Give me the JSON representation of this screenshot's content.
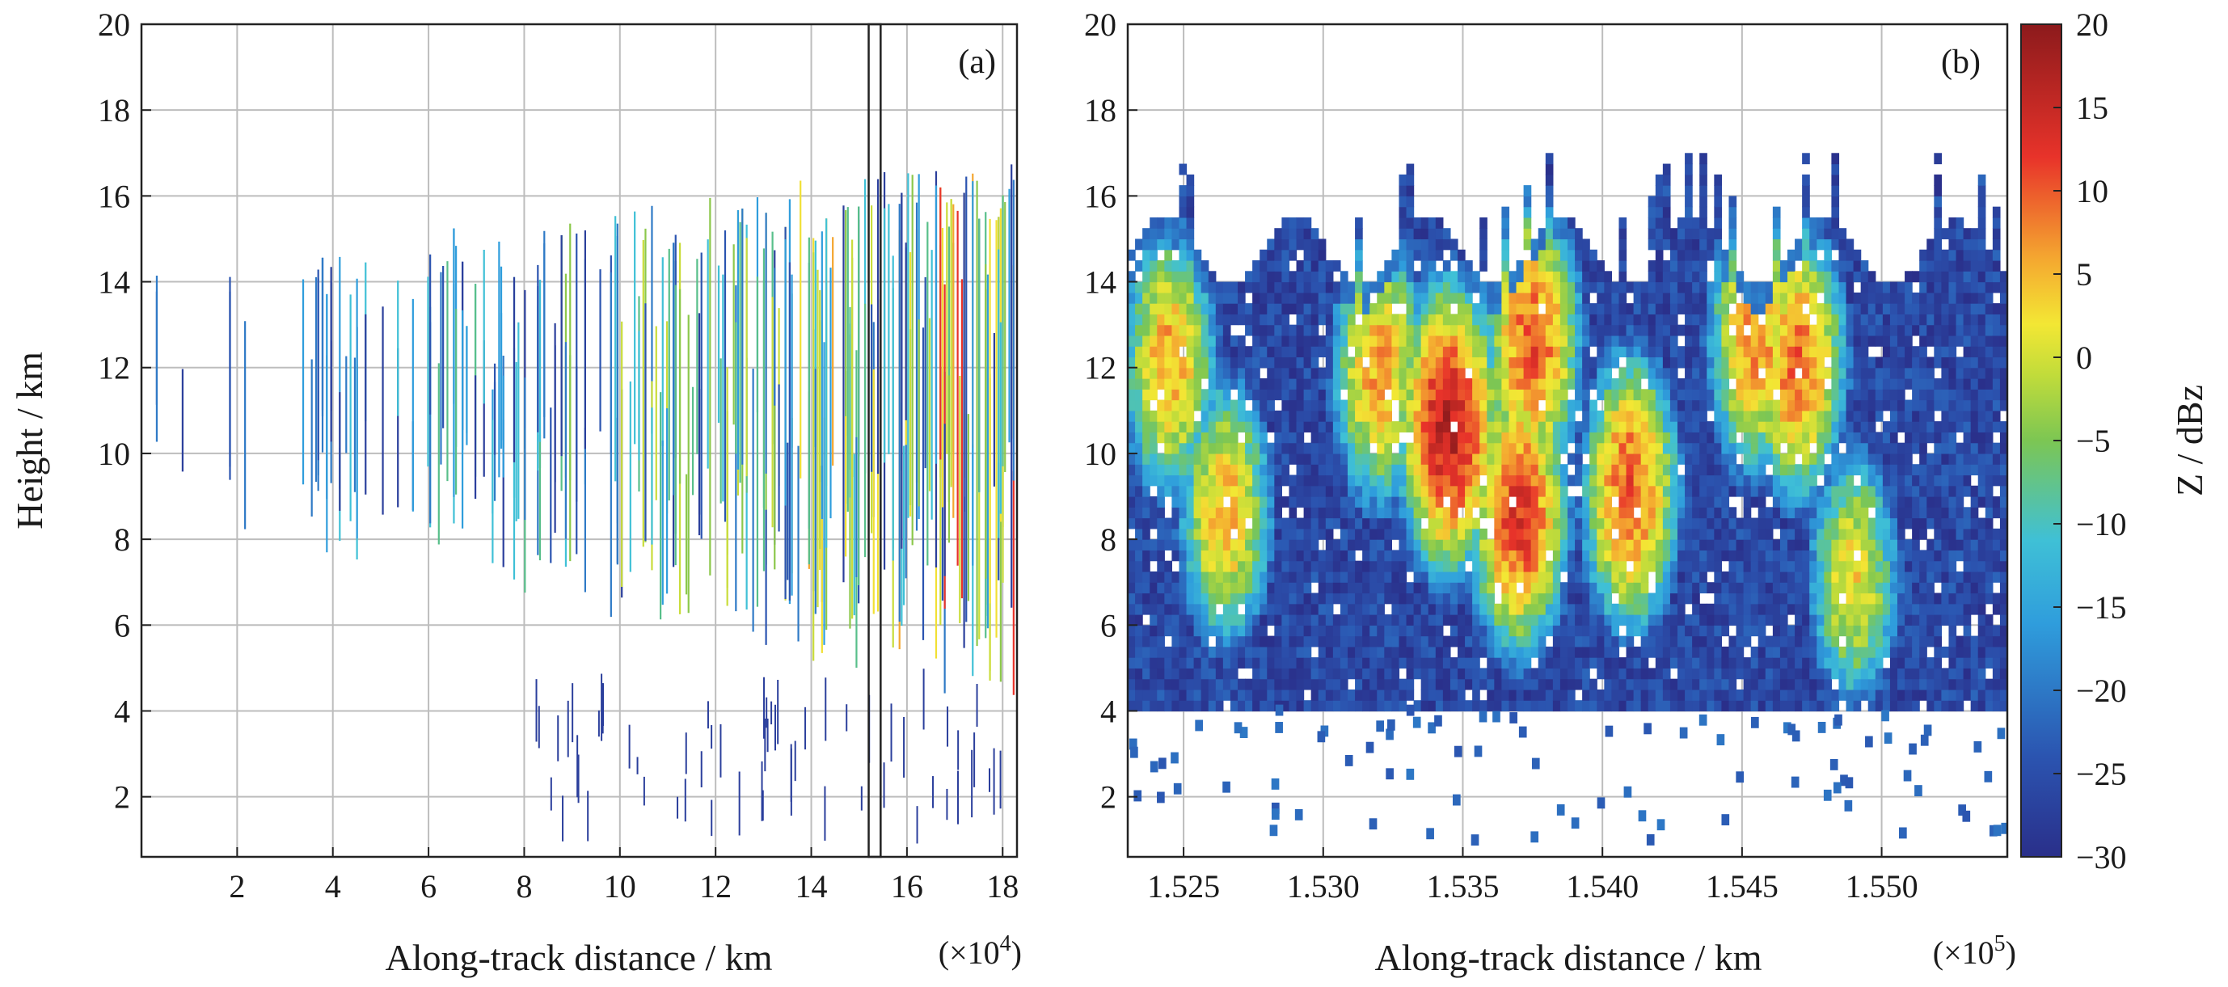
{
  "chart_data": [
    {
      "type": "heatmap",
      "panel_label": "(a)",
      "xlabel": "Along-track distance / km",
      "x_multiplier": "(×10",
      "x_multiplier_exp": "4",
      "x_multiplier_close": ")",
      "ylabel": "Height / km",
      "xlim": [
        0,
        18.3
      ],
      "ylim": [
        0.6,
        20
      ],
      "xticks": [
        "2",
        "4",
        "6",
        "8",
        "10",
        "12",
        "14",
        "16",
        "18"
      ],
      "xtick_values": [
        2,
        4,
        6,
        8,
        10,
        12,
        14,
        16,
        18
      ],
      "yticks": [
        "2",
        "4",
        "6",
        "8",
        "10",
        "12",
        "14",
        "16",
        "18",
        "20"
      ],
      "ytick_values": [
        2,
        4,
        6,
        8,
        10,
        12,
        14,
        16,
        18,
        20
      ],
      "grid": true,
      "highlight_box": {
        "x_range": [
          15.2,
          15.45
        ],
        "y_range": [
          0.6,
          20
        ]
      },
      "profiles_description": "sparse vertical reflectivity profiles; echo top rises from ~13 km to ~16 km left to right; echo base descends from ~9 km to ~4.5 km",
      "cloud_top_km": [
        13.5,
        16.3
      ],
      "cloud_base_km": [
        9.0,
        4.3
      ]
    },
    {
      "type": "heatmap",
      "panel_label": "(b)",
      "xlabel": "Along-track distance / km",
      "x_multiplier": "(×10",
      "x_multiplier_exp": "5",
      "x_multiplier_close": ")",
      "ylabel": "",
      "xlim": [
        1.523,
        1.5545
      ],
      "ylim": [
        0.6,
        20
      ],
      "xticks": [
        "1.525",
        "1.530",
        "1.535",
        "1.540",
        "1.545",
        "1.550"
      ],
      "xtick_values": [
        1.525,
        1.53,
        1.535,
        1.54,
        1.545,
        1.55
      ],
      "yticks": [
        "2",
        "4",
        "6",
        "8",
        "10",
        "12",
        "14",
        "16",
        "18",
        "20"
      ],
      "ytick_values": [
        2,
        4,
        6,
        8,
        10,
        12,
        14,
        16,
        18,
        20
      ],
      "grid": true,
      "cells": [
        {
          "x_center": 1.5245,
          "y_center": 12.0,
          "peak_dbz": 6
        },
        {
          "x_center": 1.5265,
          "y_center": 8.5,
          "peak_dbz": 5
        },
        {
          "x_center": 1.532,
          "y_center": 11.8,
          "peak_dbz": 6
        },
        {
          "x_center": 1.5345,
          "y_center": 10.5,
          "peak_dbz": 16
        },
        {
          "x_center": 1.537,
          "y_center": 8.5,
          "peak_dbz": 12
        },
        {
          "x_center": 1.5375,
          "y_center": 12.5,
          "peak_dbz": 10
        },
        {
          "x_center": 1.541,
          "y_center": 9.0,
          "peak_dbz": 10
        },
        {
          "x_center": 1.5455,
          "y_center": 12.5,
          "peak_dbz": 7
        },
        {
          "x_center": 1.547,
          "y_center": 12.0,
          "peak_dbz": 9
        },
        {
          "x_center": 1.549,
          "y_center": 7.0,
          "peak_dbz": 2
        }
      ],
      "colorbar": {
        "label": "Z / dBz",
        "range": [
          -30,
          20
        ],
        "ticks": [
          "20",
          "15",
          "10",
          "5",
          "0",
          "−5",
          "−10",
          "−15",
          "−20",
          "−25",
          "−30"
        ],
        "tick_values": [
          20,
          15,
          10,
          5,
          0,
          -5,
          -10,
          -15,
          -20,
          -25,
          -30
        ],
        "colormap": "jet"
      }
    }
  ]
}
